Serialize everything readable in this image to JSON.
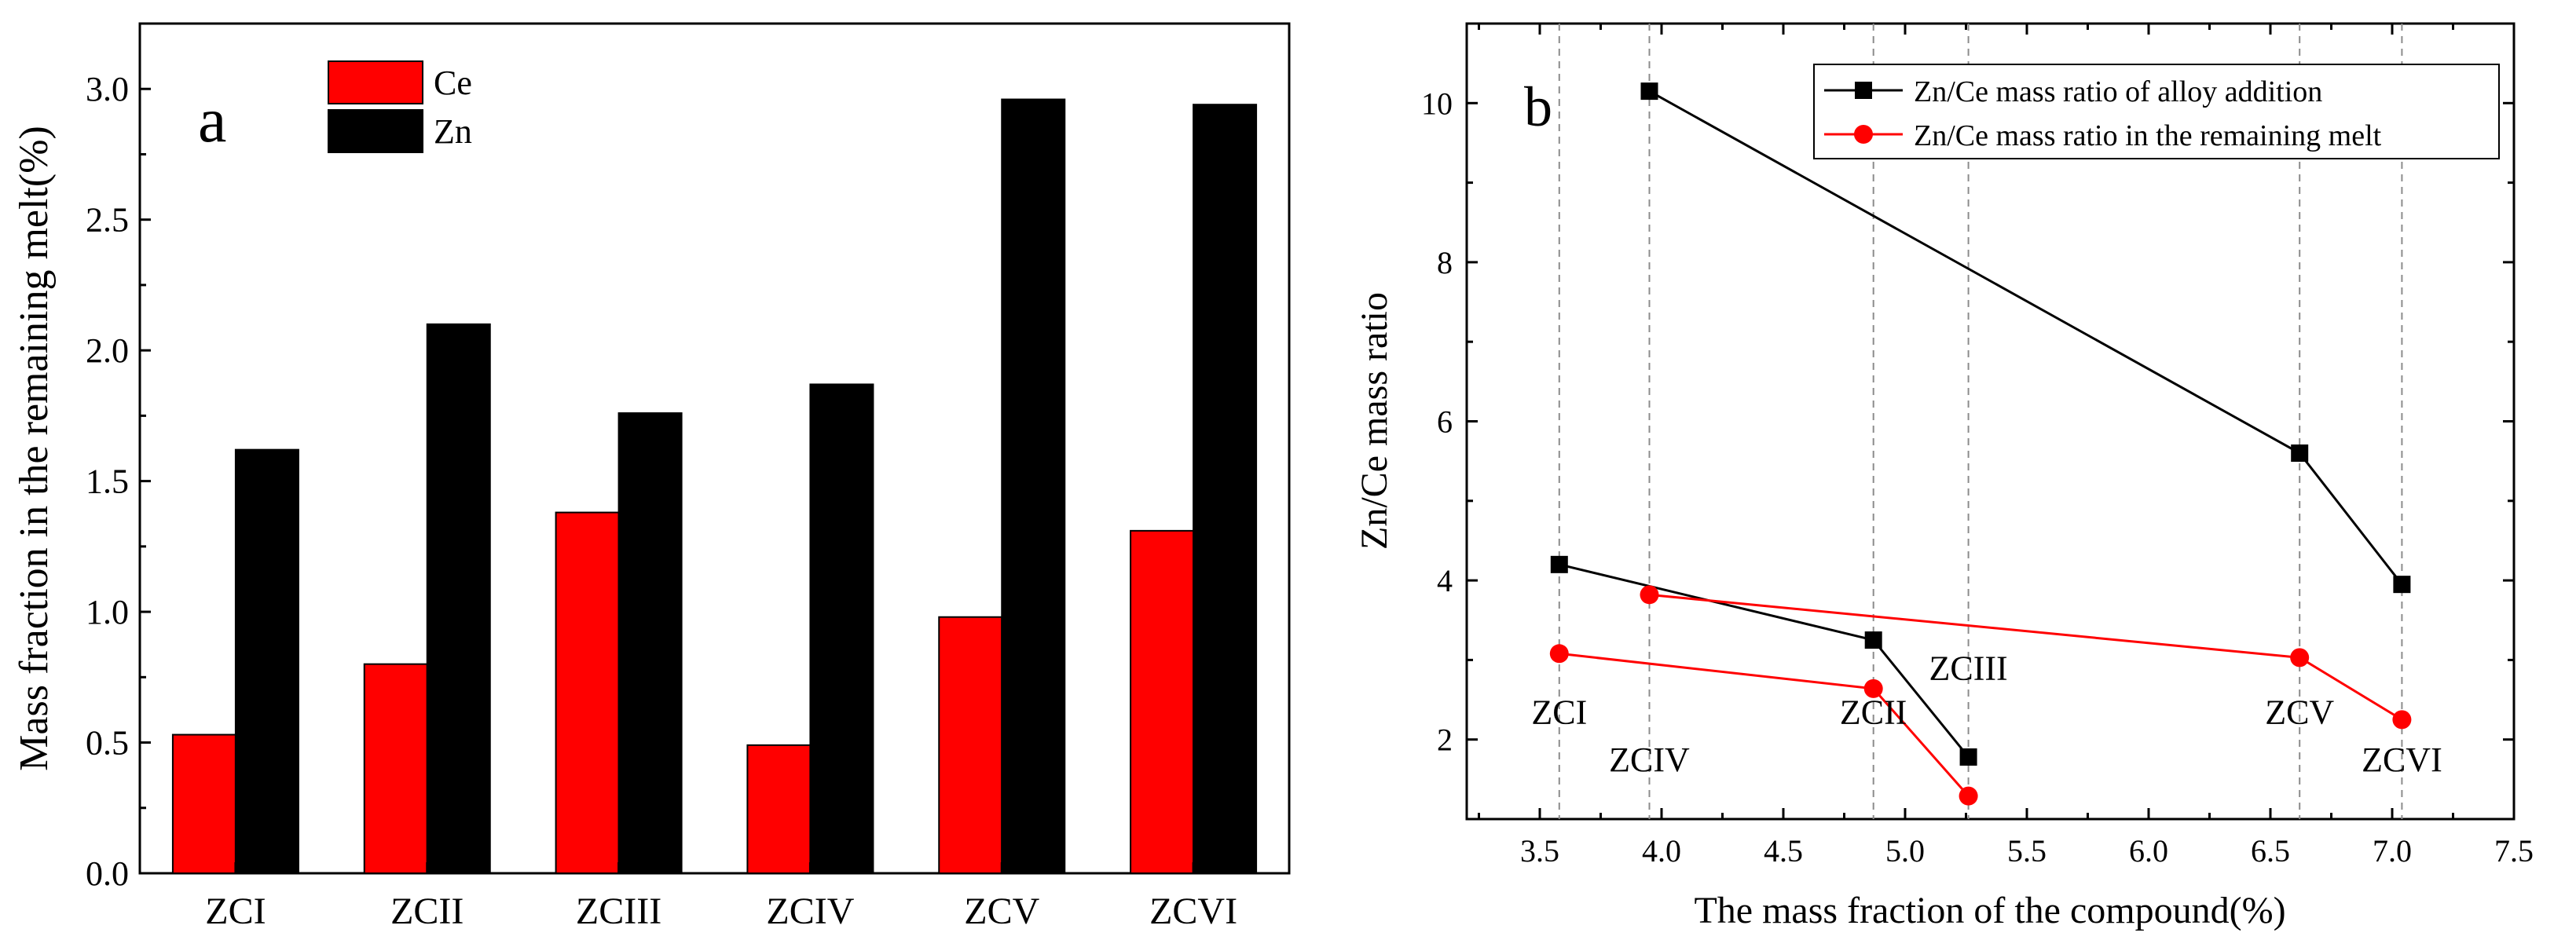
{
  "chart_data": [
    {
      "type": "bar",
      "panel_label": "a",
      "categories": [
        "ZCI",
        "ZCII",
        "ZCIII",
        "ZCIV",
        "ZCV",
        "ZCVI"
      ],
      "series": [
        {
          "name": "Ce",
          "color": "#ff0000",
          "values": [
            0.53,
            0.8,
            1.38,
            0.49,
            0.98,
            1.31
          ]
        },
        {
          "name": "Zn",
          "color": "#000000",
          "values": [
            1.62,
            2.1,
            1.76,
            1.87,
            2.96,
            2.94
          ]
        }
      ],
      "title": "",
      "xlabel": "",
      "ylabel": "Mass fraction in the remaining melt(%)",
      "ylim": [
        0,
        3.25
      ],
      "yticks": [
        "0.0",
        "0.5",
        "1.0",
        "1.5",
        "2.0",
        "2.5",
        "3.0"
      ],
      "legend_position": "top-center",
      "grid": false
    },
    {
      "type": "line",
      "panel_label": "b",
      "title": "",
      "xlabel": "The mass fraction of the compound(%)",
      "ylabel": "Zn/Ce mass ratio",
      "xlim": [
        3.2,
        7.5
      ],
      "ylim": [
        1.0,
        11.0
      ],
      "xticks": [
        "3.5",
        "4.0",
        "4.5",
        "5.0",
        "5.5",
        "6.0",
        "6.5",
        "7.0",
        "7.5"
      ],
      "yticks": [
        "2",
        "4",
        "6",
        "8",
        "10"
      ],
      "reference_lines_x": [
        3.58,
        3.95,
        4.87,
        5.26,
        6.62,
        7.04
      ],
      "point_labels": [
        {
          "text": "ZCI",
          "x": 3.58,
          "y": 2.2
        },
        {
          "text": "ZCIV",
          "x": 3.95,
          "y": 1.6
        },
        {
          "text": "ZCII",
          "x": 4.87,
          "y": 2.2
        },
        {
          "text": "ZCIII",
          "x": 5.26,
          "y": 2.75
        },
        {
          "text": "ZCV",
          "x": 6.62,
          "y": 2.2
        },
        {
          "text": "ZCVI",
          "x": 7.04,
          "y": 1.6
        }
      ],
      "series": [
        {
          "name": "Zn/Ce mass ratio of alloy addition",
          "color": "#000000",
          "marker": "square",
          "segments": [
            {
              "x": [
                3.95,
                6.62,
                7.04
              ],
              "y": [
                10.15,
                5.6,
                3.95
              ]
            },
            {
              "x": [
                3.58,
                4.87,
                5.26
              ],
              "y": [
                4.2,
                3.25,
                1.78
              ]
            }
          ]
        },
        {
          "name": "Zn/Ce mass ratio in the remaining melt",
          "color": "#ff0000",
          "marker": "circle",
          "segments": [
            {
              "x": [
                3.95,
                6.62,
                7.04
              ],
              "y": [
                3.82,
                3.03,
                2.25
              ]
            },
            {
              "x": [
                3.58,
                4.87,
                5.26
              ],
              "y": [
                3.08,
                2.64,
                1.29
              ]
            }
          ]
        }
      ],
      "legend_position": "top-right",
      "grid": false
    }
  ]
}
